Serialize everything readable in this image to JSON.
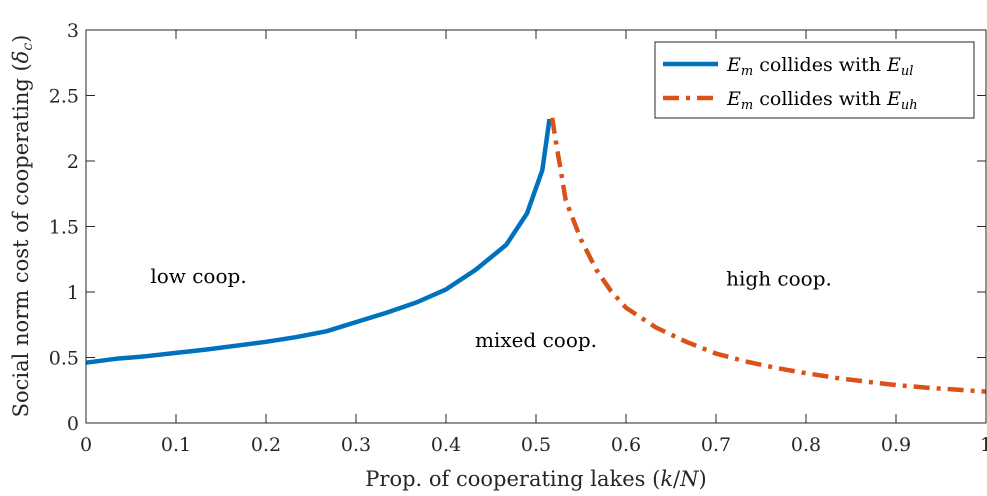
{
  "chart_data": {
    "type": "line",
    "xlabel": "Prop. of cooperating lakes (k/N)",
    "ylabel": "Social norm cost of cooperating (δc)",
    "xlim": [
      0,
      1
    ],
    "ylim": [
      0,
      3
    ],
    "xticks": [
      "0",
      "0.1",
      "0.2",
      "0.3",
      "0.4",
      "0.5",
      "0.6",
      "0.7",
      "0.8",
      "0.9",
      "1"
    ],
    "yticks": [
      "0",
      "0.5",
      "1",
      "1.5",
      "2",
      "2.5",
      "3"
    ],
    "grid": false,
    "legend_position": "top-right",
    "series": [
      {
        "name": "Em collides with Eul",
        "color": "#0072BD",
        "style": "solid",
        "x": [
          0,
          0.033,
          0.067,
          0.1,
          0.133,
          0.167,
          0.2,
          0.233,
          0.267,
          0.3,
          0.333,
          0.367,
          0.4,
          0.433,
          0.467,
          0.49,
          0.507,
          0.515
        ],
        "y": [
          0.46,
          0.49,
          0.51,
          0.535,
          0.56,
          0.59,
          0.62,
          0.655,
          0.7,
          0.77,
          0.84,
          0.92,
          1.02,
          1.17,
          1.36,
          1.6,
          1.93,
          2.32
        ]
      },
      {
        "name": "Em collides with Euh",
        "color": "#D95319",
        "style": "dashdot",
        "x": [
          0.518,
          0.522,
          0.527,
          0.533,
          0.55,
          0.567,
          0.583,
          0.6,
          0.633,
          0.667,
          0.7,
          0.733,
          0.767,
          0.8,
          0.833,
          0.867,
          0.9,
          0.933,
          0.967,
          1.0
        ],
        "y": [
          2.33,
          2.15,
          1.95,
          1.7,
          1.4,
          1.17,
          1.01,
          0.88,
          0.73,
          0.62,
          0.53,
          0.47,
          0.42,
          0.38,
          0.345,
          0.315,
          0.29,
          0.27,
          0.255,
          0.24
        ]
      }
    ],
    "annotations": [
      {
        "text": "low coop.",
        "x": 0.125,
        "y": 1.07
      },
      {
        "text": "mixed coop.",
        "x": 0.5,
        "y": 0.58
      },
      {
        "text": "high coop.",
        "x": 0.77,
        "y": 1.05
      }
    ]
  }
}
